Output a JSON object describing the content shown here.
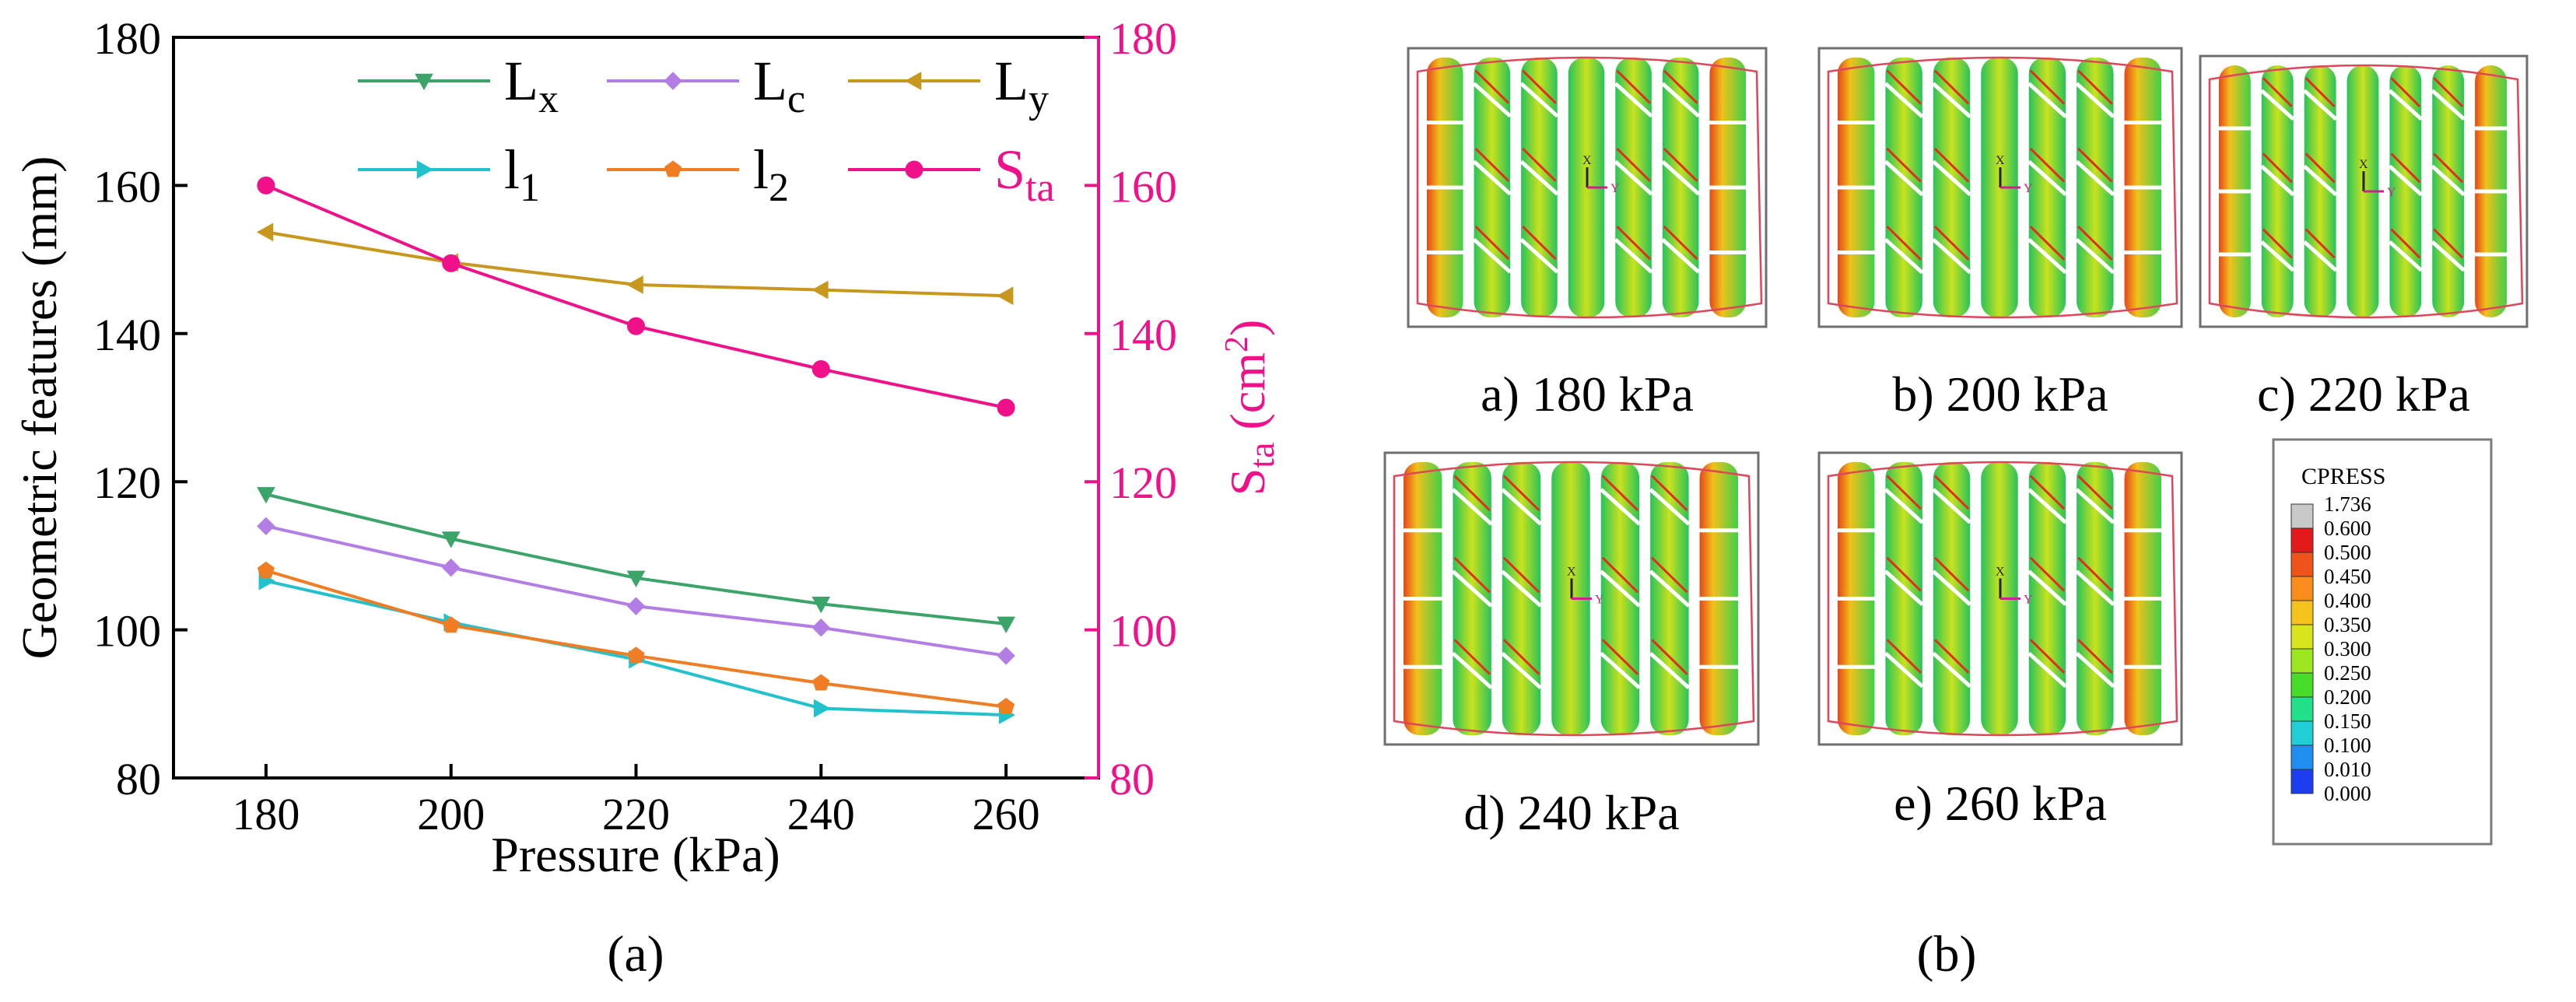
{
  "colors": {
    "Lx": "#3aa469",
    "Lc": "#b27ee6",
    "Ly": "#c8981e",
    "l1": "#22c1cc",
    "l2": "#f07d23",
    "Sta": "#f0118a",
    "axis": "#000000",
    "right_axis": "#f0118a"
  },
  "chart_data": {
    "type": "line",
    "x": [
      180,
      200,
      220,
      240,
      260
    ],
    "xlabel": "Pressure (kPa)",
    "ylabel": "Geometric features (mm)",
    "ylabel_right": "S_ta (cm²)",
    "xlim": [
      170,
      270
    ],
    "ylim": [
      80,
      180
    ],
    "ylim_right": [
      80,
      180
    ],
    "xticks": [
      180,
      200,
      220,
      240,
      260
    ],
    "yticks": [
      80,
      100,
      120,
      140,
      160,
      180
    ],
    "yticks_right": [
      80,
      100,
      120,
      140,
      160,
      180
    ],
    "series": [
      {
        "key": "Lx",
        "name": "L",
        "sub": "x",
        "marker": "tri-down",
        "axis": "left",
        "values": [
          118.3,
          112.3,
          107.0,
          103.5,
          100.8
        ]
      },
      {
        "key": "Lc",
        "name": "L",
        "sub": "c",
        "marker": "diamond",
        "axis": "left",
        "values": [
          114.0,
          108.4,
          103.2,
          100.3,
          96.5
        ]
      },
      {
        "key": "Ly",
        "name": "L",
        "sub": "y",
        "marker": "tri-left",
        "axis": "left",
        "values": [
          153.7,
          149.6,
          146.6,
          145.9,
          145.1
        ]
      },
      {
        "key": "l1",
        "name": "l",
        "sub": "1",
        "marker": "tri-right",
        "axis": "left",
        "values": [
          106.6,
          101.0,
          96.0,
          89.4,
          88.5
        ]
      },
      {
        "key": "l2",
        "name": "l",
        "sub": "2",
        "marker": "pentagon",
        "axis": "left",
        "values": [
          108.0,
          100.6,
          96.5,
          92.8,
          89.6
        ]
      },
      {
        "key": "Sta",
        "name": "S",
        "sub": "ta",
        "marker": "circle",
        "axis": "right",
        "values": [
          160.0,
          149.5,
          141.0,
          135.2,
          130.0
        ]
      }
    ]
  },
  "panel_labels": {
    "a": "(a)",
    "b": "(b)"
  },
  "contact_panels": [
    {
      "key": "a",
      "label": "a) 180 kPa"
    },
    {
      "key": "b",
      "label": "b) 200 kPa"
    },
    {
      "key": "c",
      "label": "c) 220 kPa"
    },
    {
      "key": "d",
      "label": "d) 240 kPa"
    },
    {
      "key": "e",
      "label": "e) 260 kPa"
    }
  ],
  "legend_cpress": {
    "title": "CPRESS",
    "entries": [
      {
        "value": "1.736",
        "color": "#c8c8c8"
      },
      {
        "value": "0.600",
        "color": "#e31a1c"
      },
      {
        "value": "0.500",
        "color": "#f0531a"
      },
      {
        "value": "0.450",
        "color": "#f98c1c"
      },
      {
        "value": "0.400",
        "color": "#f5c21a"
      },
      {
        "value": "0.350",
        "color": "#d8e41c"
      },
      {
        "value": "0.300",
        "color": "#9be61e"
      },
      {
        "value": "0.250",
        "color": "#46dc28"
      },
      {
        "value": "0.200",
        "color": "#22e08a"
      },
      {
        "value": "0.150",
        "color": "#20cfd6"
      },
      {
        "value": "0.100",
        "color": "#1e8ff0"
      },
      {
        "value": "0.010",
        "color": "#1d3ef0"
      },
      {
        "value": "0.000",
        "color": ""
      }
    ]
  },
  "axis_markers": {
    "x": "X",
    "y": "Y"
  }
}
